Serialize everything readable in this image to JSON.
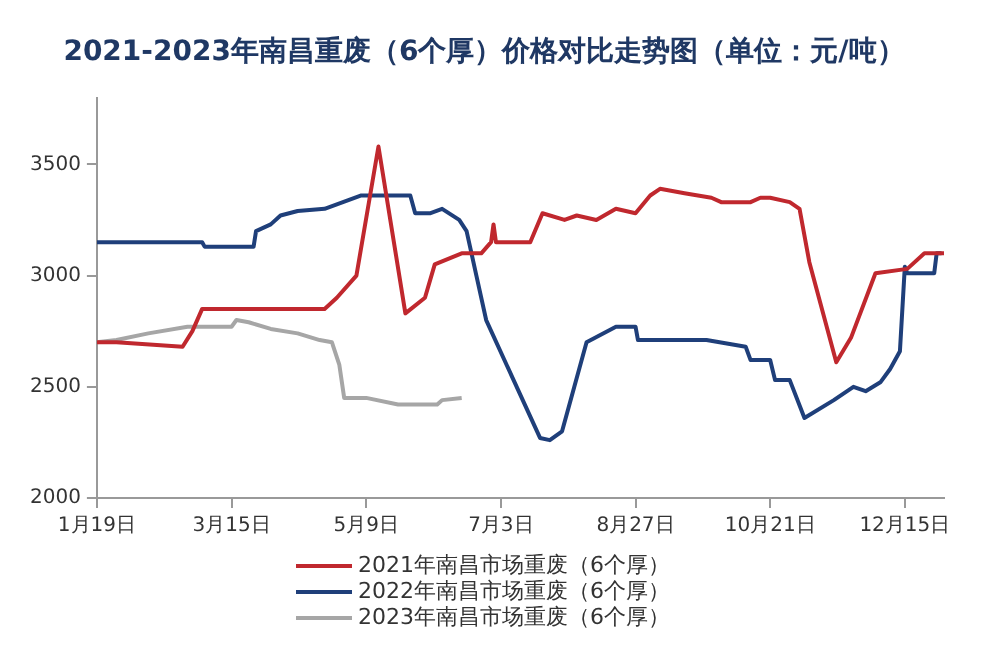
{
  "chart_data": {
    "type": "line",
    "title": "2021-2023年南昌重废（6个厚）价格对比走势图（单位：元/吨）",
    "legend": "bottom",
    "marker": "none",
    "line_style": "solid",
    "grid": false,
    "xlim": [
      "--01-19",
      "--12-31"
    ],
    "xticks": [
      {
        "value": "--01-19",
        "label": "1月19日"
      },
      {
        "value": "--03-15",
        "label": "3月15日"
      },
      {
        "value": "--05-09",
        "label": "5月9日"
      },
      {
        "value": "--07-03",
        "label": "7月3日"
      },
      {
        "value": "--08-27",
        "label": "8月27日"
      },
      {
        "value": "--10-21",
        "label": "10月21日"
      },
      {
        "value": "--12-15",
        "label": "12月15日"
      }
    ],
    "ylim": [
      2000,
      3800
    ],
    "yticks": [
      2000,
      2500,
      3000,
      3500
    ],
    "series": [
      {
        "name": "2021年南昌市场重废（6个厚）",
        "color": "#c0282e",
        "x": [
          "--01-19",
          "--01-27",
          "--02-23",
          "--02-27",
          "--03-03",
          "--04-22",
          "--04-27",
          "--05-05",
          "--05-14",
          "--05-25",
          "--06-02",
          "--06-06",
          "--06-17",
          "--06-25",
          "--06-29",
          "--06-30",
          "--07-01",
          "--07-15",
          "--07-20",
          "--07-29",
          "--08-03",
          "--08-11",
          "--08-19",
          "--08-27",
          "--09-02",
          "--09-06",
          "--09-16",
          "--09-27",
          "--10-01",
          "--10-13",
          "--10-17",
          "--10-21",
          "--10-29",
          "--11-02",
          "--11-06",
          "--11-17",
          "--11-23",
          "--12-03",
          "--12-16",
          "--12-23",
          "--12-31"
        ],
        "values": [
          2700,
          2700,
          2680,
          2750,
          2850,
          2850,
          2900,
          3000,
          3580,
          2830,
          2900,
          3050,
          3100,
          3100,
          3150,
          3230,
          3150,
          3150,
          3280,
          3250,
          3270,
          3250,
          3300,
          3280,
          3360,
          3390,
          3370,
          3350,
          3330,
          3330,
          3350,
          3350,
          3330,
          3300,
          3060,
          2610,
          2720,
          3010,
          3030,
          3100,
          3100
        ]
      },
      {
        "name": "2022年南昌市场重废（6个厚）",
        "color": "#1f3f7a",
        "x": [
          "--01-19",
          "--03-03",
          "--03-04",
          "--03-24",
          "--03-25",
          "--03-31",
          "--04-04",
          "--04-11",
          "--04-22",
          "--05-07",
          "--05-27",
          "--05-29",
          "--06-04",
          "--06-09",
          "--06-16",
          "--06-19",
          "--06-23",
          "--06-27",
          "--07-19",
          "--07-23",
          "--07-28",
          "--08-02",
          "--08-07",
          "--08-19",
          "--08-27",
          "--08-28",
          "--09-25",
          "--10-11",
          "--10-13",
          "--10-21",
          "--10-23",
          "--10-29",
          "--11-04",
          "--11-16",
          "--11-24",
          "--11-29",
          "--12-05",
          "--12-09",
          "--12-13",
          "--12-15",
          "--12-16",
          "--12-27",
          "--12-28",
          "--12-30"
        ],
        "values": [
          3150,
          3150,
          3130,
          3130,
          3200,
          3230,
          3270,
          3290,
          3300,
          3360,
          3360,
          3280,
          3280,
          3300,
          3250,
          3200,
          3000,
          2800,
          2270,
          2260,
          2300,
          2500,
          2700,
          2770,
          2770,
          2710,
          2710,
          2680,
          2620,
          2620,
          2530,
          2530,
          2360,
          2440,
          2500,
          2480,
          2520,
          2580,
          2660,
          3040,
          3010,
          3010,
          3100,
          3100
        ]
      },
      {
        "name": "2023年南昌市场重废（6个厚）",
        "color": "#a6a6a6",
        "x": [
          "--01-19",
          "--01-27",
          "--02-09",
          "--02-25",
          "--03-15",
          "--03-17",
          "--03-22",
          "--03-31",
          "--04-11",
          "--04-20",
          "--04-25",
          "--04-28",
          "--04-30",
          "--05-09",
          "--05-22",
          "--06-07",
          "--06-09",
          "--06-17"
        ],
        "values": [
          2700,
          2710,
          2740,
          2770,
          2770,
          2800,
          2790,
          2760,
          2740,
          2710,
          2700,
          2600,
          2450,
          2450,
          2420,
          2420,
          2440,
          2450
        ]
      }
    ]
  }
}
